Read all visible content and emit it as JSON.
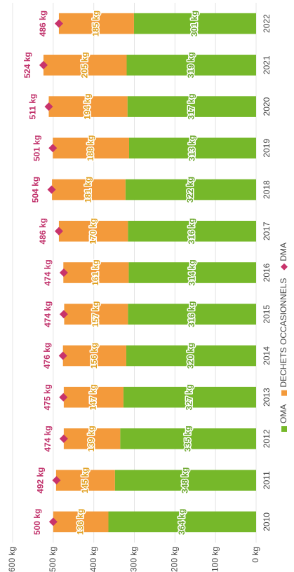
{
  "chart_data": {
    "type": "bar",
    "stacked": true,
    "categories": [
      "2010",
      "2011",
      "2012",
      "2013",
      "2014",
      "2015",
      "2016",
      "2017",
      "2018",
      "2019",
      "2020",
      "2021",
      "2022"
    ],
    "series": [
      {
        "name": "OMA",
        "kind": "bar",
        "color": "#76b82a",
        "values": [
          364,
          348,
          335,
          327,
          320,
          316,
          314,
          316,
          322,
          313,
          317,
          319,
          301
        ],
        "value_labels": [
          "364 kg",
          "348 kg",
          "335 kg",
          "327 kg",
          "320 kg",
          "316 kg",
          "314 kg",
          "316 kg",
          "322 kg",
          "313 kg",
          "317 kg",
          "319 kg",
          "301 kg"
        ],
        "label_color": "#6aa62a"
      },
      {
        "name": "DECHETS OCCASIONNELS",
        "kind": "bar",
        "color": "#f39a3b",
        "values": [
          136,
          145,
          139,
          147,
          156,
          157,
          161,
          170,
          181,
          188,
          194,
          205,
          185
        ],
        "value_labels": [
          "136 kg",
          "145 kg",
          "139 kg",
          "147 kg",
          "156 kg",
          "157 kg",
          "161 kg",
          "170 kg",
          "181 kg",
          "188 kg",
          "194 kg",
          "205 kg",
          "185 kg"
        ],
        "label_color": "#e0a020"
      },
      {
        "name": "DMA",
        "kind": "marker",
        "color": "#c8336b",
        "values": [
          500,
          492,
          474,
          475,
          476,
          474,
          474,
          486,
          504,
          501,
          511,
          524,
          486
        ],
        "value_labels": [
          "500 kg",
          "492 kg",
          "474 kg",
          "475 kg",
          "476 kg",
          "474 kg",
          "474 kg",
          "486 kg",
          "504 kg",
          "501 kg",
          "511 kg",
          "524 kg",
          "486 kg"
        ],
        "label_color": "#c0306a"
      }
    ],
    "ylim": [
      0,
      600
    ],
    "yticks": [
      {
        "value": 0,
        "label": "0 kg"
      },
      {
        "value": 100,
        "label": "100 kg"
      },
      {
        "value": 200,
        "label": "200 kg"
      },
      {
        "value": 300,
        "label": "300 kg"
      },
      {
        "value": 400,
        "label": "400 kg"
      },
      {
        "value": 500,
        "label": "500 kg"
      },
      {
        "value": 600,
        "label": "600 kg"
      }
    ],
    "grid": true,
    "legend": "bottom"
  }
}
